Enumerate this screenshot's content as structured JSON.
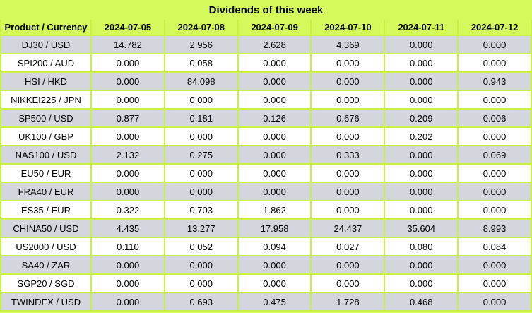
{
  "title": "Dividends of this week",
  "colors": {
    "lime_bg": "#d3f95a",
    "grid": "#c9f144",
    "row_gray": "#d3d6dd",
    "row_white": "#ffffff",
    "text": "#000000"
  },
  "table": {
    "header": [
      "Product / Currency",
      "2024-07-05",
      "2024-07-08",
      "2024-07-09",
      "2024-07-10",
      "2024-07-11",
      "2024-07-12"
    ],
    "rows": [
      {
        "product": "DJ30 / USD",
        "values": [
          "14.782",
          "2.956",
          "2.628",
          "4.369",
          "0.000",
          "0.000"
        ],
        "bold": [
          false,
          false,
          false,
          false,
          false,
          false
        ]
      },
      {
        "product": "SPI200 / AUD",
        "values": [
          "0.000",
          "0.058",
          "0.000",
          "0.000",
          "0.000",
          "0.000"
        ],
        "bold": [
          false,
          false,
          false,
          false,
          false,
          false
        ]
      },
      {
        "product": "HSI / HKD",
        "values": [
          "0.000",
          "84.098",
          "0.000",
          "0.000",
          "0.000",
          "0.943"
        ],
        "bold": [
          false,
          true,
          false,
          false,
          false,
          true
        ]
      },
      {
        "product": "NIKKEI225 / JPN",
        "values": [
          "0.000",
          "0.000",
          "0.000",
          "0.000",
          "0.000",
          "0.000"
        ],
        "bold": [
          false,
          false,
          false,
          false,
          false,
          false
        ]
      },
      {
        "product": "SP500 / USD",
        "values": [
          "0.877",
          "0.181",
          "0.126",
          "0.676",
          "0.209",
          "0.006"
        ],
        "bold": [
          false,
          false,
          false,
          false,
          false,
          true
        ]
      },
      {
        "product": "UK100 / GBP",
        "values": [
          "0.000",
          "0.000",
          "0.000",
          "0.000",
          "0.202",
          "0.000"
        ],
        "bold": [
          false,
          false,
          false,
          false,
          false,
          false
        ]
      },
      {
        "product": "NAS100 / USD",
        "values": [
          "2.132",
          "0.275",
          "0.000",
          "0.333",
          "0.000",
          "0.069"
        ],
        "bold": [
          false,
          false,
          false,
          false,
          false,
          true
        ]
      },
      {
        "product": "EU50 / EUR",
        "values": [
          "0.000",
          "0.000",
          "0.000",
          "0.000",
          "0.000",
          "0.000"
        ],
        "bold": [
          false,
          false,
          false,
          false,
          false,
          false
        ]
      },
      {
        "product": "FRA40 / EUR",
        "values": [
          "0.000",
          "0.000",
          "0.000",
          "0.000",
          "0.000",
          "0.000"
        ],
        "bold": [
          false,
          false,
          false,
          false,
          false,
          false
        ]
      },
      {
        "product": "ES35 / EUR",
        "values": [
          "0.322",
          "0.703",
          "1.862",
          "0.000",
          "0.000",
          "0.000"
        ],
        "bold": [
          false,
          true,
          true,
          false,
          false,
          false
        ]
      },
      {
        "product": "CHINA50 / USD",
        "values": [
          "4.435",
          "13.277",
          "17.958",
          "24.437",
          "35.604",
          "8.993"
        ],
        "bold": [
          false,
          true,
          true,
          true,
          true,
          true
        ]
      },
      {
        "product": "US2000 / USD",
        "values": [
          "0.110",
          "0.052",
          "0.094",
          "0.027",
          "0.080",
          "0.084"
        ],
        "bold": [
          false,
          false,
          false,
          false,
          false,
          true
        ]
      },
      {
        "product": "SA40 / ZAR",
        "values": [
          "0.000",
          "0.000",
          "0.000",
          "0.000",
          "0.000",
          "0.000"
        ],
        "bold": [
          false,
          false,
          false,
          false,
          false,
          false
        ]
      },
      {
        "product": "SGP20 / SGD",
        "values": [
          "0.000",
          "0.000",
          "0.000",
          "0.000",
          "0.000",
          "0.000"
        ],
        "bold": [
          false,
          false,
          false,
          false,
          false,
          false
        ]
      },
      {
        "product": "TWINDEX / USD",
        "values": [
          "0.000",
          "0.693",
          "0.475",
          "1.728",
          "0.468",
          "0.000"
        ],
        "bold": [
          false,
          false,
          false,
          false,
          false,
          false
        ]
      }
    ]
  }
}
